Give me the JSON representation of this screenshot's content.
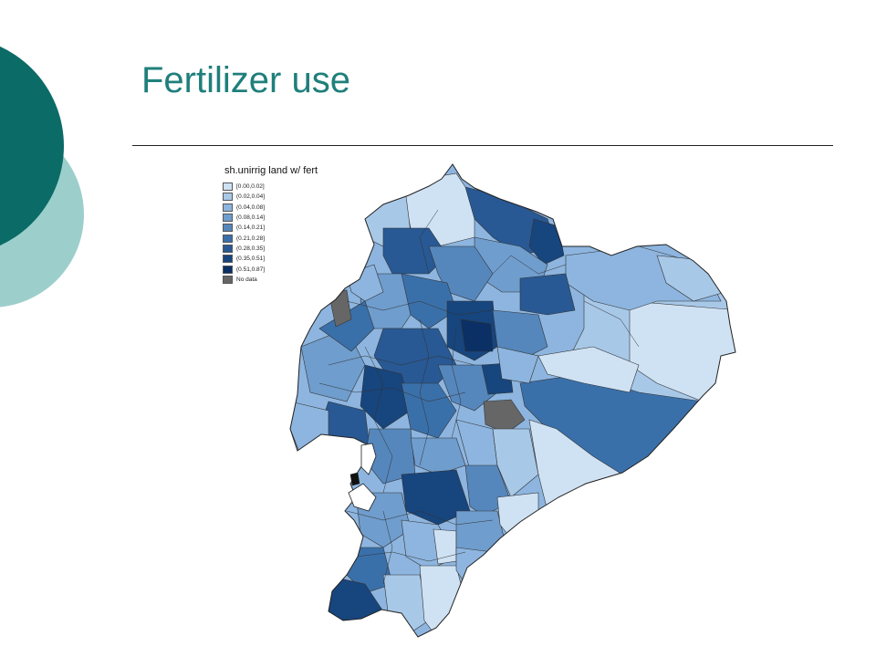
{
  "slide": {
    "title": "Fertilizer use",
    "colors": {
      "title": "#1f7f7b",
      "deco_dark": "#0b6b66",
      "deco_light": "#9ccfcc"
    }
  },
  "map": {
    "region": "Ecuador",
    "legend": {
      "title": "sh.unirrig land w/ fert",
      "items": [
        {
          "label": "[0.00,0.02]",
          "color": "#cfe2f4"
        },
        {
          "label": "(0.02,0.04]",
          "color": "#a8c8e8"
        },
        {
          "label": "(0.04,0.08]",
          "color": "#8db5df"
        },
        {
          "label": "(0.08,0.14]",
          "color": "#6f9dcd"
        },
        {
          "label": "(0.14,0.21]",
          "color": "#5587bd"
        },
        {
          "label": "(0.21,0.28]",
          "color": "#3a70aa"
        },
        {
          "label": "(0.28,0.35]",
          "color": "#285994"
        },
        {
          "label": "(0.35,0.51]",
          "color": "#17457e"
        },
        {
          "label": "(0.51,0.87]",
          "color": "#0a3066"
        },
        {
          "label": "No data",
          "color": "#666666"
        }
      ]
    }
  }
}
